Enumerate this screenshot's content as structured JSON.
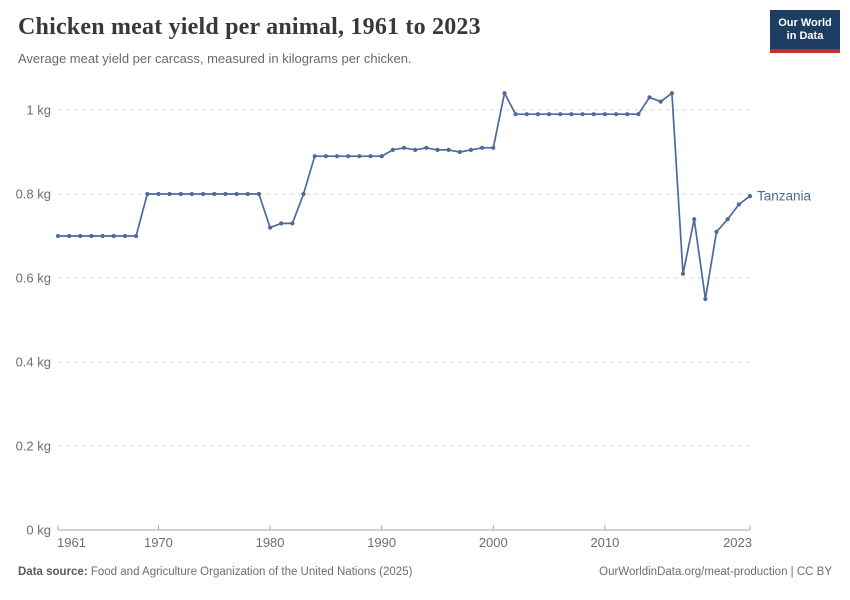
{
  "header": {
    "title": "Chicken meat yield per animal, 1961 to 2023",
    "subtitle": "Average meat yield per carcass, measured in kilograms per chicken.",
    "logo": {
      "line1": "Our World",
      "line2": "in Data",
      "bg_color": "#1d3d63",
      "accent_color": "#c0312b"
    }
  },
  "chart_data": {
    "type": "line",
    "title": "Chicken meat yield per animal, 1961 to 2023",
    "unit": "kg",
    "xlim": [
      1961,
      2023
    ],
    "ylim": [
      0,
      1
    ],
    "xticks": [
      1961,
      1970,
      1980,
      1990,
      2000,
      2010,
      2023
    ],
    "yticks": [
      0,
      0.2,
      0.4,
      0.6,
      0.8,
      1
    ],
    "ytick_labels": [
      "0 kg",
      "0.2 kg",
      "0.4 kg",
      "0.6 kg",
      "0.8 kg",
      "1 kg"
    ],
    "grid": "horizontal-dashed",
    "legend_position": "end-of-line-label",
    "axis_color": "#a8a8a8",
    "grid_color": "#dadada",
    "tick_label_color": "#6e6e6e",
    "series": [
      {
        "name": "Tanzania",
        "color": "#4c6a9c",
        "x": [
          1961,
          1962,
          1963,
          1964,
          1965,
          1966,
          1967,
          1968,
          1969,
          1970,
          1971,
          1972,
          1973,
          1974,
          1975,
          1976,
          1977,
          1978,
          1979,
          1980,
          1981,
          1982,
          1983,
          1984,
          1985,
          1986,
          1987,
          1988,
          1989,
          1990,
          1991,
          1992,
          1993,
          1994,
          1995,
          1996,
          1997,
          1998,
          1999,
          2000,
          2001,
          2002,
          2003,
          2004,
          2005,
          2006,
          2007,
          2008,
          2009,
          2010,
          2011,
          2012,
          2013,
          2014,
          2015,
          2016,
          2017,
          2018,
          2019,
          2020,
          2021,
          2022,
          2023
        ],
        "values": [
          0.7,
          0.7,
          0.7,
          0.7,
          0.7,
          0.7,
          0.7,
          0.7,
          0.8,
          0.8,
          0.8,
          0.8,
          0.8,
          0.8,
          0.8,
          0.8,
          0.8,
          0.8,
          0.8,
          0.72,
          0.73,
          0.73,
          0.8,
          0.89,
          0.89,
          0.89,
          0.89,
          0.89,
          0.89,
          0.89,
          0.905,
          0.91,
          0.905,
          0.91,
          0.905,
          0.905,
          0.9,
          0.905,
          0.91,
          0.91,
          1.04,
          0.99,
          0.99,
          0.99,
          0.99,
          0.99,
          0.99,
          0.99,
          0.99,
          0.99,
          0.99,
          0.99,
          0.99,
          1.03,
          1.02,
          1.04,
          0.61,
          0.74,
          0.55,
          0.71,
          0.74,
          0.775,
          0.795
        ]
      }
    ],
    "end_label": "Tanzania"
  },
  "footer": {
    "source_label": "Data source:",
    "source_text": " Food and Agriculture Organization of the United Nations (2025)",
    "credit": "OurWorldinData.org/meat-production | CC BY"
  }
}
